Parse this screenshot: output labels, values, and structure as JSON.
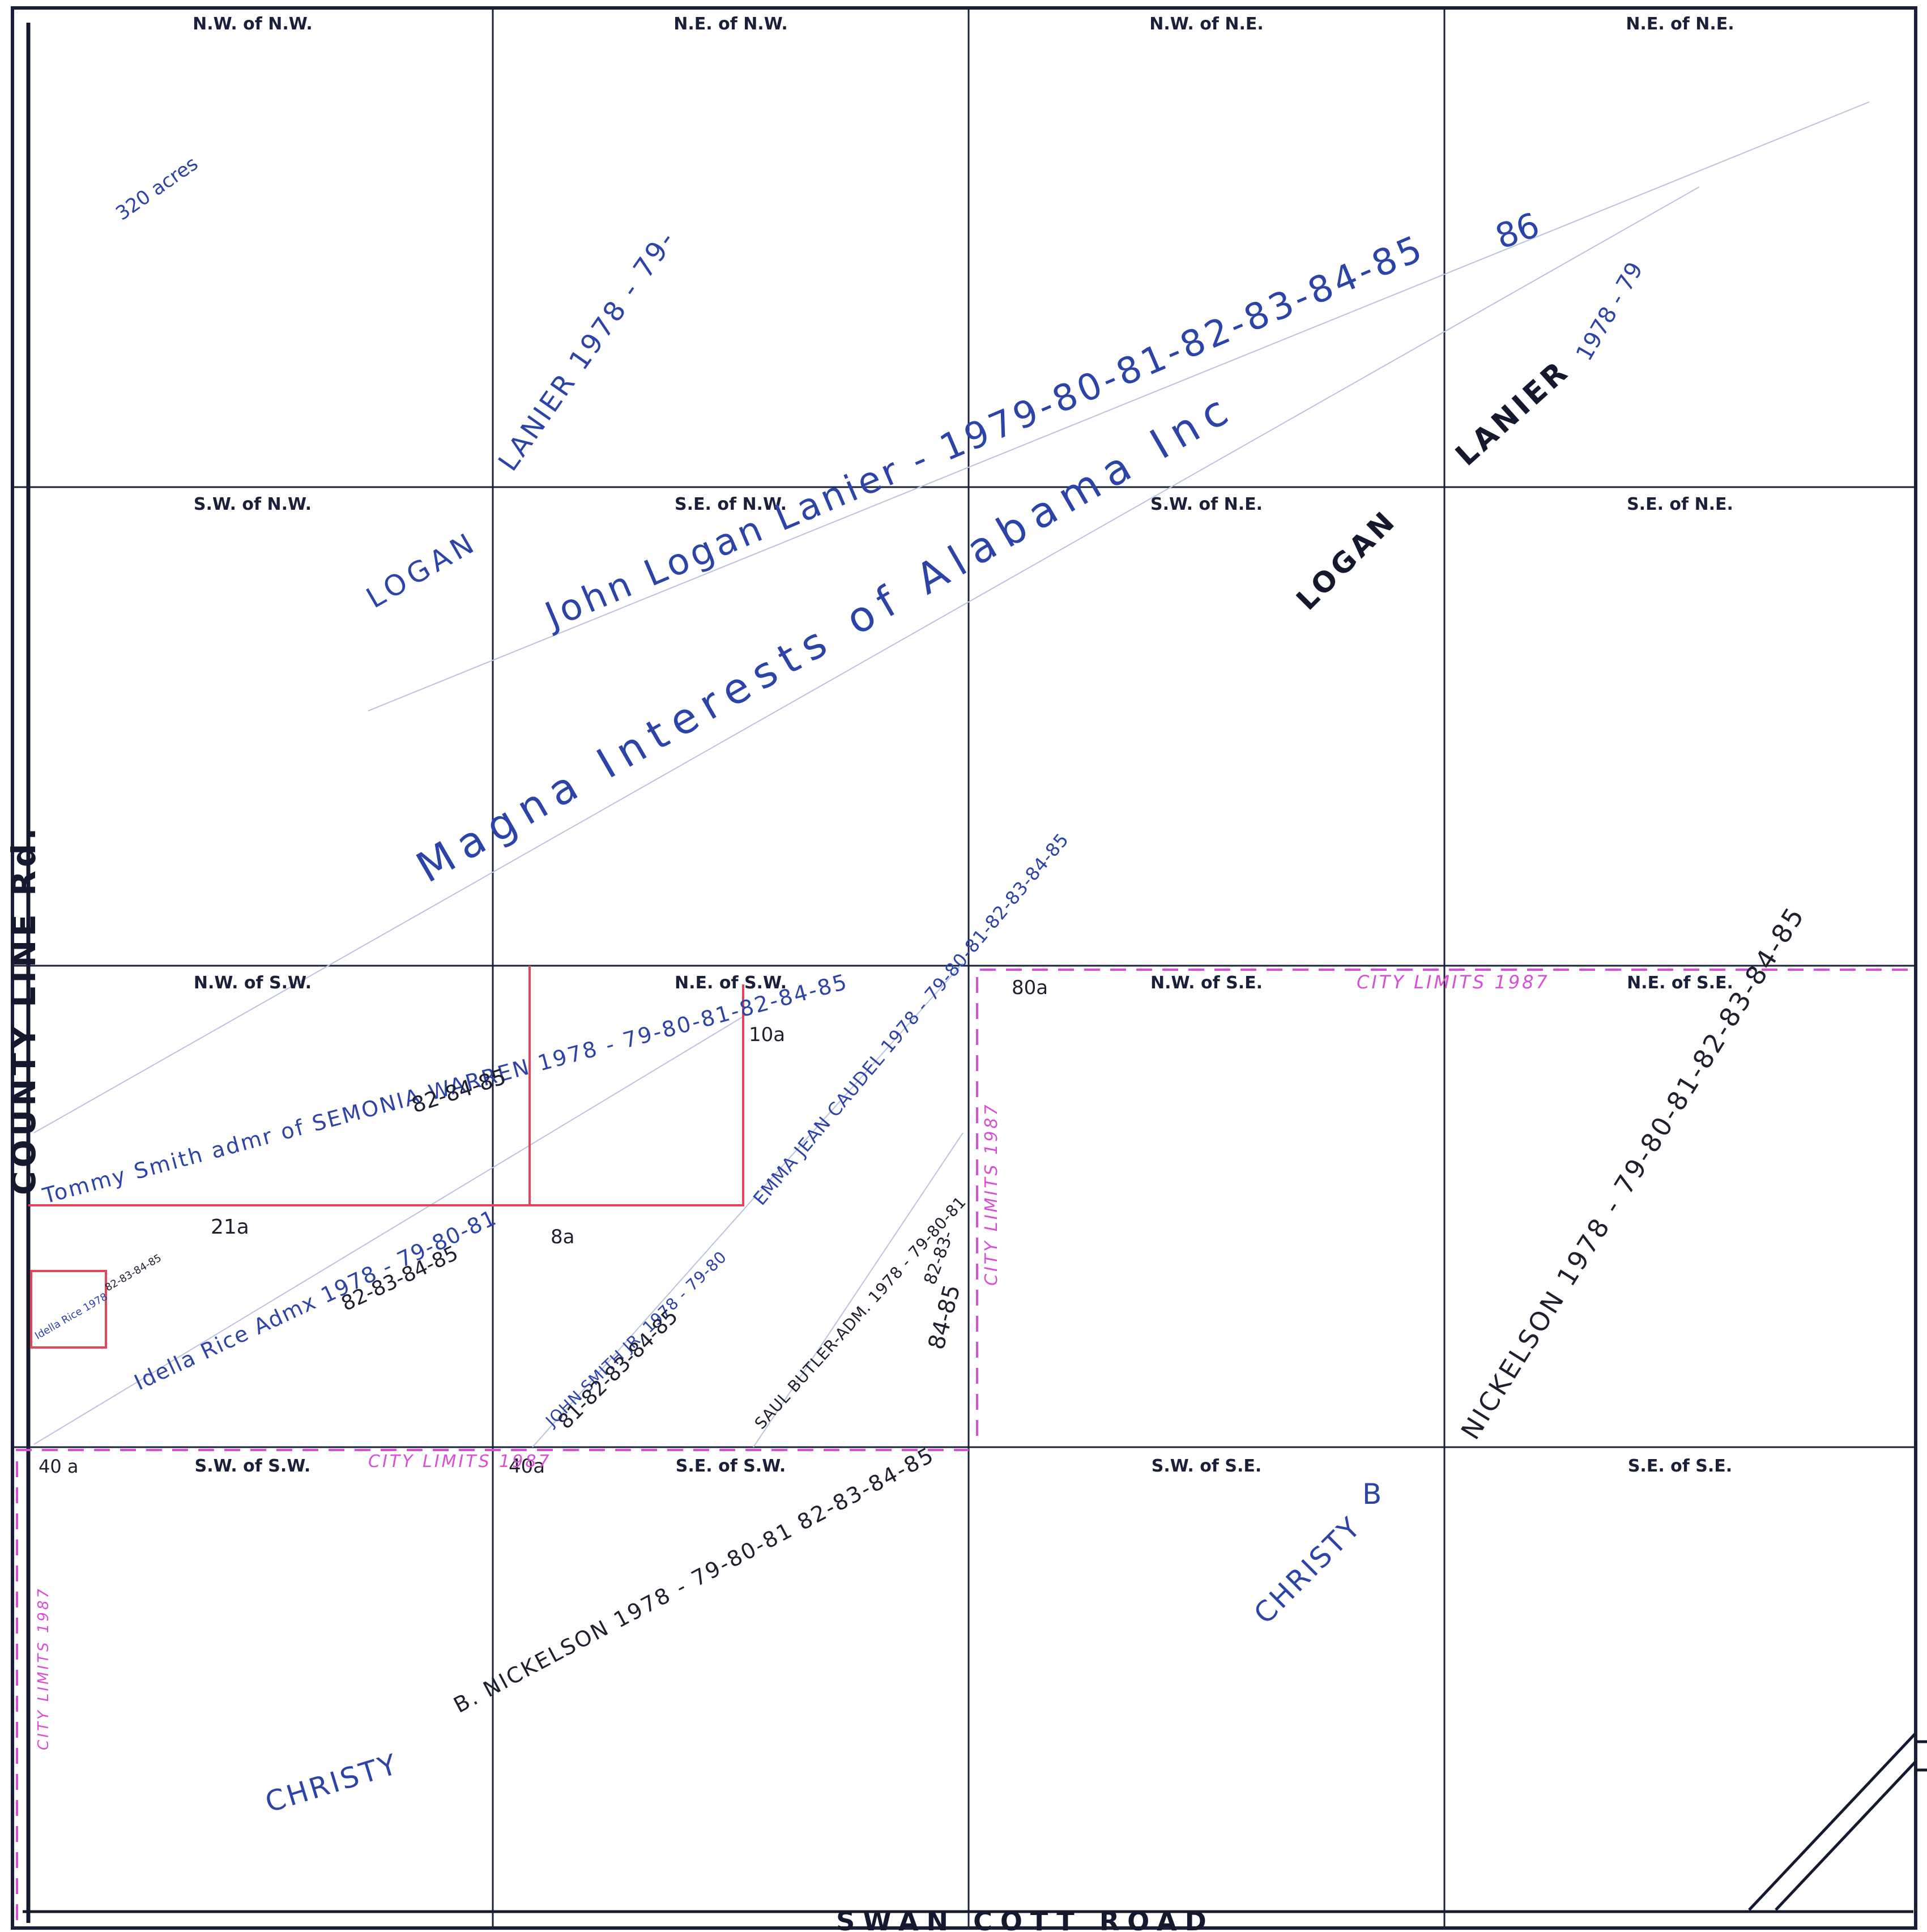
{
  "grid": {
    "labels": [
      [
        "N.W. of N.W.",
        "N.E. of N.W.",
        "N.W. of N.E.",
        "N.E. of N.E."
      ],
      [
        "S.W. of N.W.",
        "S.E. of N.W.",
        "S.W. of N.E.",
        "S.E. of N.E."
      ],
      [
        "N.W. of S.W.",
        "N.E. of S.W.",
        "N.W. of S.E.",
        "N.E. of S.E."
      ],
      [
        "S.W. of S.W.",
        "S.E. of S.W.",
        "S.W. of S.E.",
        "S.E. of S.E."
      ]
    ]
  },
  "roads": {
    "west": "COUNTY LINE Rd.",
    "south": "SWAN COTT ROAD"
  },
  "annotations": {
    "acres_total": "320 acres",
    "lanier_nw": "LANIER 1978 - 79-",
    "lanier_ne": "LANIER",
    "lanier_ne_years": "1978 - 79",
    "year_86": "86",
    "logan_nw": "LOGAN",
    "logan_ne": "LOGAN",
    "john_logan_lanier": "John Logan Lanier - 1979-80-81-82-83-84-85",
    "magna_interests": "Magna Interests of Alabama Inc",
    "tommy_smith": "Tommy Smith admr of SEMONIA WARREN 1978 - 79-80-81-82-84-85",
    "tommy_smith_years": "82-84-85",
    "acres_10a": "10a",
    "acres_21a": "21a",
    "acres_8a": "8a",
    "acres_80a": "80a",
    "acres_40a_west": "40 a",
    "acres_40a_mid": "40a",
    "emma_jean": "EMMA JEAN CAUDEL 1978 - 79-80-81-82-83-84-85",
    "idella_rice": "Idella Rice Admx 1978 - 79-80-81",
    "idella_rice_years": "82-83-84-85",
    "small_lot": "Idella Rice 1978",
    "small_lot_years": "82-83-84-85",
    "john_smith": "JOHN SMITH JR. 1978 - 79-80",
    "john_smith_years": "81-82-83-84-85",
    "saul_butler": "SAUL BUTLER-ADM. 1978 - 79-80-81",
    "saul_butler_years": "82-83-",
    "saul_butler_years2": "84-85",
    "nickelson_ne": "NICKELSON 1978 - 79-80-81-82-83-84-85",
    "nickelson_sw": "B. NICKELSON 1978 - 79-80-81 82-83-84-85",
    "christy_sw": "CHRISTY",
    "christy_se": "CHRISTY",
    "christy_se_b": "B",
    "city_limits_1": "CITY LIMITS 1987",
    "city_limits_2": "CITY LIMITS 1987",
    "city_limits_3": "CITY LIMITS 1987",
    "city_limits_4": "CITY LIMITS 1987"
  },
  "colors": {
    "ink_blue": "#2c44a8",
    "grid_line": "#1a1f3a",
    "red_boundary": "#e0455a",
    "city_limits": "#d84fd6"
  }
}
